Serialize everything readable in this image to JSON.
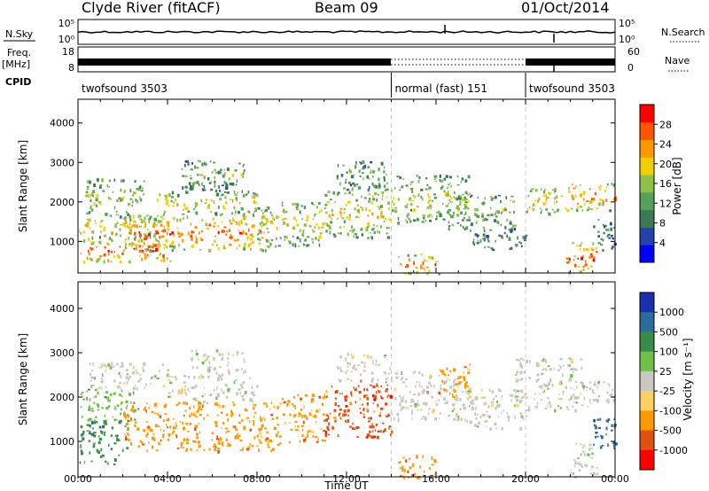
{
  "header": {
    "station": "Clyde River (fitACF)",
    "beam": "Beam 09",
    "date": "01/Oct/2014"
  },
  "top_panels": {
    "nsky_label": "N.Sky",
    "nsky_ticks": [
      "10^5",
      "10^0"
    ],
    "nsearch_label": "N.Search",
    "nsearch_ticks": [
      "10^5",
      "10^0"
    ],
    "freq_label_1": "Freq.",
    "freq_label_2": "[MHz]",
    "freq_ticks": [
      "18",
      "8"
    ],
    "nave_label": "Nave",
    "nave_ticks": [
      "60",
      "0"
    ],
    "cpid_label": "CPID",
    "cpid_segments": [
      {
        "label": "twofsound 3503",
        "start_h": 0,
        "end_h": 14.0
      },
      {
        "label": "normal (fast) 151",
        "start_h": 14.0,
        "end_h": 20.0
      },
      {
        "label": "twofsound 3503",
        "start_h": 20.0,
        "end_h": 24.0
      }
    ]
  },
  "colors": {
    "power_scale": [
      "#0000ff",
      "#2244aa",
      "#3a7a55",
      "#55a05a",
      "#8fc04a",
      "#f0d000",
      "#ff9900",
      "#ff5500",
      "#ff0000"
    ],
    "velocity_scale": [
      "#1a2eb0",
      "#2c6a9a",
      "#3a8a4a",
      "#6fbf4a",
      "#c8c8c0",
      "#ffd060",
      "#ff9900",
      "#e05010",
      "#ff0000"
    ],
    "grid": "#cccccc"
  },
  "chart_data": [
    {
      "type": "heatmap",
      "name": "power",
      "xlabel": "",
      "ylabel": "Slant Range [km]",
      "xlim": [
        0,
        24
      ],
      "ylim": [
        200,
        4600
      ],
      "x_ticks": [],
      "y_ticks": [
        "1000",
        "2000",
        "3000",
        "4000"
      ],
      "colorbar_label": "Power [dB]",
      "colorbar_ticks": [
        "28",
        "24",
        "20",
        "16",
        "12",
        "8",
        "4"
      ],
      "colorbar_range": [
        0,
        32
      ],
      "bands": [
        {
          "x0": 0.0,
          "x1": 4.2,
          "r0": 500,
          "r1": 1100,
          "level": 0.92
        },
        {
          "x0": 0.0,
          "x1": 3.5,
          "r0": 1100,
          "r1": 1700,
          "level": 0.7
        },
        {
          "x0": 0.3,
          "x1": 3.0,
          "r0": 1700,
          "r1": 2600,
          "level": 0.55
        },
        {
          "x0": 2.0,
          "x1": 8.5,
          "r0": 800,
          "r1": 1700,
          "level": 0.85
        },
        {
          "x0": 3.5,
          "x1": 8.0,
          "r0": 1700,
          "r1": 2300,
          "level": 0.6
        },
        {
          "x0": 4.5,
          "x1": 7.5,
          "r0": 2300,
          "r1": 3100,
          "level": 0.45
        },
        {
          "x0": 8.0,
          "x1": 11.0,
          "r0": 900,
          "r1": 2000,
          "level": 0.6
        },
        {
          "x0": 11.0,
          "x1": 14.0,
          "r0": 1100,
          "r1": 2400,
          "level": 0.65
        },
        {
          "x0": 11.5,
          "x1": 13.8,
          "r0": 2400,
          "r1": 3100,
          "level": 0.4
        },
        {
          "x0": 14.3,
          "x1": 16.2,
          "r0": 200,
          "r1": 700,
          "level": 0.9
        },
        {
          "x0": 14.0,
          "x1": 17.5,
          "r0": 1500,
          "r1": 2700,
          "level": 0.55
        },
        {
          "x0": 16.5,
          "x1": 19.5,
          "r0": 1300,
          "r1": 2200,
          "level": 0.5
        },
        {
          "x0": 17.5,
          "x1": 20.0,
          "r0": 800,
          "r1": 1300,
          "level": 0.35
        },
        {
          "x0": 20.0,
          "x1": 22.0,
          "r0": 1700,
          "r1": 2400,
          "level": 0.7
        },
        {
          "x0": 22.0,
          "x1": 24.0,
          "r0": 1800,
          "r1": 2500,
          "level": 0.8
        },
        {
          "x0": 21.8,
          "x1": 23.2,
          "r0": 200,
          "r1": 1000,
          "level": 0.95
        },
        {
          "x0": 23.0,
          "x1": 24.0,
          "r0": 800,
          "r1": 1600,
          "level": 0.3
        }
      ]
    },
    {
      "type": "heatmap",
      "name": "velocity",
      "xlabel": "Time UT",
      "ylabel": "Slant Range [km]",
      "xlim": [
        0,
        24
      ],
      "ylim": [
        200,
        4600
      ],
      "x_ticks": [
        "00:00",
        "04:00",
        "08:00",
        "12:00",
        "16:00",
        "20:00",
        "00:00"
      ],
      "y_ticks": [
        "1000",
        "2000",
        "3000",
        "4000"
      ],
      "colorbar_label": "Velocity [m s^-1]",
      "colorbar_ticks": [
        "1000",
        "500",
        "100",
        "25",
        "-25",
        "-100",
        "-500",
        "-1000"
      ],
      "bands": [
        {
          "x0": 0.0,
          "x1": 2.2,
          "r0": 500,
          "r1": 1500,
          "level": 2
        },
        {
          "x0": 0.0,
          "x1": 2.5,
          "r0": 1500,
          "r1": 2200,
          "level": 3
        },
        {
          "x0": 0.5,
          "x1": 4.0,
          "r0": 2200,
          "r1": 2800,
          "level": 4
        },
        {
          "x0": 2.0,
          "x1": 9.0,
          "r0": 800,
          "r1": 1900,
          "level": 6
        },
        {
          "x0": 4.0,
          "x1": 8.0,
          "r0": 1900,
          "r1": 2500,
          "level": 4
        },
        {
          "x0": 5.0,
          "x1": 7.5,
          "r0": 2500,
          "r1": 3100,
          "level": 4
        },
        {
          "x0": 9.0,
          "x1": 11.0,
          "r0": 1000,
          "r1": 2100,
          "level": 6
        },
        {
          "x0": 11.0,
          "x1": 14.0,
          "r0": 1100,
          "r1": 2400,
          "level": 7
        },
        {
          "x0": 11.5,
          "x1": 14.0,
          "r0": 2400,
          "r1": 3000,
          "level": 4
        },
        {
          "x0": 14.3,
          "x1": 16.0,
          "r0": 200,
          "r1": 700,
          "level": 6
        },
        {
          "x0": 14.0,
          "x1": 17.0,
          "r0": 1500,
          "r1": 2600,
          "level": 4
        },
        {
          "x0": 16.0,
          "x1": 17.5,
          "r0": 2000,
          "r1": 2800,
          "level": 6
        },
        {
          "x0": 17.0,
          "x1": 20.0,
          "r0": 1300,
          "r1": 2200,
          "level": 4
        },
        {
          "x0": 19.5,
          "x1": 22.5,
          "r0": 1700,
          "r1": 2900,
          "level": 4
        },
        {
          "x0": 22.0,
          "x1": 24.0,
          "r0": 1800,
          "r1": 2400,
          "level": 4
        },
        {
          "x0": 22.0,
          "x1": 23.2,
          "r0": 200,
          "r1": 1000,
          "level": 4
        },
        {
          "x0": 23.0,
          "x1": 24.0,
          "r0": 800,
          "r1": 1600,
          "level": 1
        }
      ]
    }
  ]
}
